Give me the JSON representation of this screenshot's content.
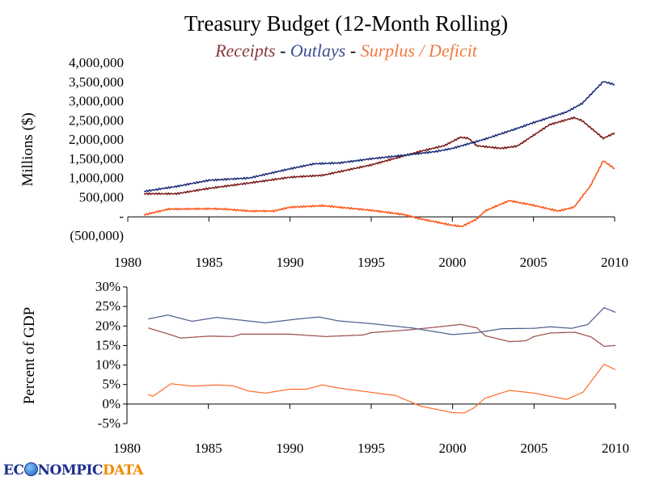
{
  "colors": {
    "receipts": "#7b1c1c",
    "outlays": "#1c2e78",
    "deficit": "#ff5719",
    "receipts_pct": "#9a4a4a",
    "outlays_pct": "#4a5a8c",
    "deficit_pct": "#ff6a2a"
  },
  "logo": {
    "parts": [
      "EC",
      "NOMPIC",
      "DATA"
    ]
  },
  "chart_data": [
    {
      "type": "line",
      "title": "Treasury Budget (12-Month Rolling)",
      "subtitle": {
        "receipts": "Receipts",
        "sep1": " - ",
        "outlays": "Outlays",
        "sep2": " - ",
        "deficit": "Surplus / Deficit"
      },
      "ylabel": "Millions ($)",
      "xlim": [
        1980,
        2010
      ],
      "ylim": [
        -500000,
        4000000
      ],
      "x_ticks": [
        "1980",
        "1985",
        "1990",
        "1995",
        "2000",
        "2005",
        "2010"
      ],
      "y_ticks": [
        {
          "v": 4000000,
          "label": "4,000,000"
        },
        {
          "v": 3500000,
          "label": "3,500,000"
        },
        {
          "v": 3000000,
          "label": "3,000,000"
        },
        {
          "v": 2500000,
          "label": "2,500,000"
        },
        {
          "v": 2000000,
          "label": "2,000,000"
        },
        {
          "v": 1500000,
          "label": "1,500,000"
        },
        {
          "v": 1000000,
          "label": "1,000,000"
        },
        {
          "v": 500000,
          "label": "500,000"
        },
        {
          "v": 0,
          "label": "-"
        },
        {
          "v": -500000,
          "label": "(500,000)"
        }
      ],
      "series": [
        {
          "name": "Receipts",
          "key": "receipts",
          "points": [
            [
              1981,
              600000
            ],
            [
              1983,
              600000
            ],
            [
              1985,
              740000
            ],
            [
              1987.5,
              880000
            ],
            [
              1990,
              1030000
            ],
            [
              1992,
              1080000
            ],
            [
              1995,
              1350000
            ],
            [
              1998,
              1700000
            ],
            [
              1999.5,
              1850000
            ],
            [
              2000.5,
              2070000
            ],
            [
              2001,
              2040000
            ],
            [
              2001.5,
              1850000
            ],
            [
              2003,
              1780000
            ],
            [
              2004,
              1840000
            ],
            [
              2006,
              2400000
            ],
            [
              2007.5,
              2580000
            ],
            [
              2008,
              2500000
            ],
            [
              2009.3,
              2040000
            ],
            [
              2010,
              2180000
            ]
          ]
        },
        {
          "name": "Outlays",
          "key": "outlays",
          "points": [
            [
              1981,
              660000
            ],
            [
              1983,
              790000
            ],
            [
              1985,
              950000
            ],
            [
              1987.5,
              1010000
            ],
            [
              1990,
              1250000
            ],
            [
              1991.5,
              1380000
            ],
            [
              1993,
              1400000
            ],
            [
              1995,
              1510000
            ],
            [
              1997,
              1600000
            ],
            [
              1999,
              1700000
            ],
            [
              2000,
              1780000
            ],
            [
              2002,
              2020000
            ],
            [
              2004,
              2300000
            ],
            [
              2005,
              2450000
            ],
            [
              2007,
              2720000
            ],
            [
              2008,
              2950000
            ],
            [
              2009.3,
              3520000
            ],
            [
              2010,
              3440000
            ]
          ]
        },
        {
          "name": "Surplus / Deficit",
          "key": "deficit",
          "points": [
            [
              1981,
              50000
            ],
            [
              1982.5,
              200000
            ],
            [
              1985,
              210000
            ],
            [
              1986,
              200000
            ],
            [
              1987.5,
              150000
            ],
            [
              1989,
              150000
            ],
            [
              1990,
              250000
            ],
            [
              1992,
              290000
            ],
            [
              1995,
              170000
            ],
            [
              1997,
              60000
            ],
            [
              1998,
              -50000
            ],
            [
              2000,
              -220000
            ],
            [
              2000.6,
              -250000
            ],
            [
              2001.5,
              -60000
            ],
            [
              2002,
              150000
            ],
            [
              2003.5,
              420000
            ],
            [
              2005,
              300000
            ],
            [
              2006.5,
              150000
            ],
            [
              2007.5,
              250000
            ],
            [
              2008.5,
              800000
            ],
            [
              2009.3,
              1460000
            ],
            [
              2010,
              1250000
            ]
          ]
        }
      ]
    },
    {
      "type": "line",
      "ylabel": "Percent of GDP",
      "xlim": [
        1980,
        2010
      ],
      "ylim": [
        -5,
        30
      ],
      "x_ticks": [
        "1980",
        "1985",
        "1990",
        "1995",
        "2000",
        "2005",
        "2010"
      ],
      "y_ticks": [
        {
          "v": 30,
          "label": "30%"
        },
        {
          "v": 25,
          "label": "25%"
        },
        {
          "v": 20,
          "label": "20%"
        },
        {
          "v": 15,
          "label": "15%"
        },
        {
          "v": 10,
          "label": "10%"
        },
        {
          "v": 5,
          "label": "5%"
        },
        {
          "v": 0,
          "label": "0%"
        },
        {
          "v": -5,
          "label": "-5%"
        }
      ],
      "series": [
        {
          "name": "Receipts",
          "key": "receipts_pct",
          "points": [
            [
              1981.3,
              19.5
            ],
            [
              1982.5,
              18
            ],
            [
              1983.3,
              16.9
            ],
            [
              1985,
              17.4
            ],
            [
              1986.5,
              17.3
            ],
            [
              1987,
              17.9
            ],
            [
              1990,
              17.9
            ],
            [
              1992.2,
              17.3
            ],
            [
              1994.5,
              17.7
            ],
            [
              1995,
              18.3
            ],
            [
              1997,
              18.9
            ],
            [
              1998.5,
              19.5
            ],
            [
              2000.5,
              20.4
            ],
            [
              2001.5,
              19.5
            ],
            [
              2002,
              17.5
            ],
            [
              2003.5,
              16.0
            ],
            [
              2004.5,
              16.2
            ],
            [
              2005,
              17.3
            ],
            [
              2006,
              18.2
            ],
            [
              2007.5,
              18.4
            ],
            [
              2008.5,
              17.2
            ],
            [
              2009.3,
              14.8
            ],
            [
              2010,
              15.0
            ]
          ]
        },
        {
          "name": "Outlays",
          "key": "outlays_pct",
          "points": [
            [
              1981.3,
              21.8
            ],
            [
              1982.5,
              22.8
            ],
            [
              1984,
              21.2
            ],
            [
              1985.5,
              22.2
            ],
            [
              1987,
              21.5
            ],
            [
              1988.5,
              20.8
            ],
            [
              1990.5,
              21.8
            ],
            [
              1991.8,
              22.3
            ],
            [
              1993,
              21.3
            ],
            [
              1995,
              20.6
            ],
            [
              1997.5,
              19.5
            ],
            [
              2000,
              17.8
            ],
            [
              2001.5,
              18.3
            ],
            [
              2003,
              19.3
            ],
            [
              2005,
              19.4
            ],
            [
              2006,
              19.8
            ],
            [
              2007.3,
              19.4
            ],
            [
              2008.3,
              20.4
            ],
            [
              2009.3,
              24.7
            ],
            [
              2010,
              23.5
            ]
          ]
        },
        {
          "name": "Surplus / Deficit",
          "key": "deficit_pct",
          "points": [
            [
              1981.3,
              2.4
            ],
            [
              1981.6,
              2.0
            ],
            [
              1982.7,
              5.2
            ],
            [
              1984,
              4.6
            ],
            [
              1985.5,
              4.9
            ],
            [
              1986.5,
              4.7
            ],
            [
              1987.5,
              3.3
            ],
            [
              1988.5,
              2.8
            ],
            [
              1990,
              3.8
            ],
            [
              1991,
              3.8
            ],
            [
              1992,
              4.9
            ],
            [
              1993,
              4.1
            ],
            [
              1995,
              3.0
            ],
            [
              1996.5,
              2.2
            ],
            [
              1998,
              -0.5
            ],
            [
              2000,
              -2.2
            ],
            [
              2000.7,
              -2.3
            ],
            [
              2001.3,
              -1.0
            ],
            [
              2002,
              1.5
            ],
            [
              2003.5,
              3.5
            ],
            [
              2005,
              2.8
            ],
            [
              2007,
              1.2
            ],
            [
              2008,
              3.0
            ],
            [
              2009.3,
              10.2
            ],
            [
              2010,
              8.8
            ]
          ]
        }
      ]
    }
  ]
}
